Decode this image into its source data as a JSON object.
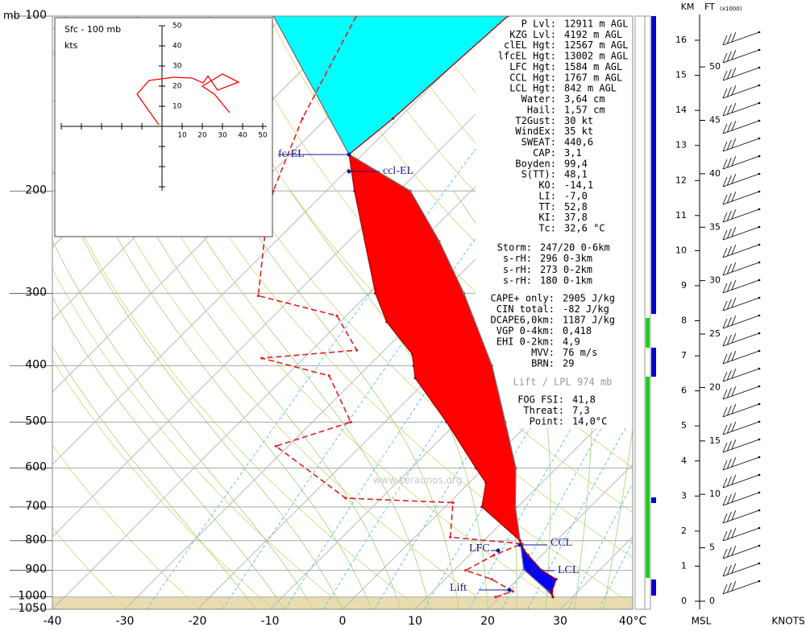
{
  "chart_data": {
    "type": "skewt",
    "y_label": "mb",
    "ylim": [
      100,
      1050
    ],
    "yticks": [
      100,
      200,
      300,
      400,
      500,
      600,
      700,
      800,
      900,
      1000,
      1050
    ],
    "log_y": true,
    "xlim": [
      -40,
      40
    ],
    "xticks": [
      -40,
      -30,
      -20,
      -10,
      0,
      10,
      20,
      30,
      {
        "value": 40,
        "label": "40°C"
      }
    ],
    "grid": true,
    "profiles": {
      "temperature": {
        "color": "#b00000",
        "dashed": false,
        "pressure": [
          1000,
          978,
          932,
          900,
          847,
          831,
          800,
          700,
          636,
          600,
          500,
          420,
          400,
          382,
          336,
          300,
          200,
          173,
          150,
          100
        ],
        "values": [
          27.3,
          26.4,
          25.3,
          22.1,
          18.1,
          16.9,
          15.0,
          5.1,
          2.3,
          -1.1,
          -11.5,
          -21.9,
          -23.8,
          -25.6,
          -33.6,
          -39.1,
          -56.1,
          -61.9,
          -60.8,
          -59.1
        ]
      },
      "dewpoint": {
        "color": "#dd2020",
        "dashed": true,
        "pressure": [
          1000,
          978,
          932,
          900,
          847,
          810,
          789,
          688,
          676,
          550,
          500,
          416,
          388,
          376,
          328,
          303,
          229,
          200,
          150,
          100
        ],
        "values": [
          19.4,
          21.0,
          16.4,
          11.6,
          13.4,
          15.7,
          4.9,
          0.5,
          -14.9,
          -31.7,
          -24.7,
          -34.1,
          -45.8,
          -33.8,
          -41.3,
          -54.9,
          -63.6,
          -67.3,
          -73.3,
          -80.0
        ]
      },
      "parcel": {
        "color": "#707070",
        "dashed": false,
        "pressure": [
          1000,
          978,
          897,
          800,
          700,
          600,
          500,
          400,
          300,
          244,
          200,
          173,
          100
        ],
        "values": [
          27.3,
          25.9,
          19.5,
          15.0,
          9.7,
          4.4,
          -3.4,
          -13.0,
          -26.9,
          -37.5,
          -48.4,
          -61.9,
          -91.4
        ]
      }
    },
    "fills": {
      "cape": "#ff0000",
      "cin": "#0000ff",
      "above_el": "#00ffff"
    },
    "level_labels": [
      "fc-EL",
      "ccl-EL",
      "CCL",
      "LFC",
      "LCL",
      "Lift"
    ],
    "watermark": "www.keraunos.org",
    "parameters": [
      [
        {
          "label": "P Lvl:",
          "value": "12911 m AGL"
        },
        {
          "label": "KZG Lvl:",
          "value": "4192 m AGL"
        },
        {
          "label": "clEL Hgt:",
          "value": "12567 m AGL"
        },
        {
          "label": "lfcEL Hgt:",
          "value": "13002 m AGL"
        },
        {
          "label": "LFC Hgt:",
          "value": "1584 m AGL"
        },
        {
          "label": "CCL Hgt:",
          "value": "1767 m AGL"
        },
        {
          "label": "LCL Hgt:",
          "value": "842 m AGL"
        },
        {
          "label": "Water:",
          "value": "3,64 cm"
        },
        {
          "label": "Hail:",
          "value": "1,57 cm"
        },
        {
          "label": "T2Gust:",
          "value": "30 kt"
        },
        {
          "label": "WindEx:",
          "value": "35 kt"
        },
        {
          "label": "SWEAT:",
          "value": "440,6"
        },
        {
          "label": "CAP:",
          "value": "3,1"
        },
        {
          "label": "Boyden:",
          "value": "99,4"
        },
        {
          "label": "S(TT):",
          "value": "48,1"
        },
        {
          "label": "KO:",
          "value": "-14,1"
        },
        {
          "label": "LI:",
          "value": "-7,0"
        },
        {
          "label": "TT:",
          "value": "52,8"
        },
        {
          "label": "KI:",
          "value": "37,8"
        },
        {
          "label": "Tc:",
          "value": "32,6 °C"
        }
      ],
      [
        {
          "label": "Storm:",
          "value": "247/20 0-6km"
        },
        {
          "label": "s-rH:",
          "value": "296  0-3km"
        },
        {
          "label": "s-rH:",
          "value": "273  0-2km"
        },
        {
          "label": "s-rH:",
          "value": "180  0-1km"
        }
      ],
      [
        {
          "label": "CAPE+ only:",
          "value": "2905 J/kg"
        },
        {
          "label": "CIN total:",
          "value": "-82 J/kg"
        },
        {
          "label": "DCAPE6,0km:",
          "value": "1187 J/kg"
        },
        {
          "label": "VGP 0-4km:",
          "value": "0,418"
        },
        {
          "label": "EHI 0-2km:",
          "value": "4,9"
        },
        {
          "label": "MVV:",
          "value": "76 m/s"
        },
        {
          "label": "BRN:",
          "value": "29"
        }
      ],
      [
        {
          "label": "FOG FSI:",
          "value": "41,8"
        },
        {
          "label": "Threat:",
          "value": "7,3"
        },
        {
          "label": "Point:",
          "value": "14,0°C"
        }
      ]
    ],
    "lift_note": "Lift / LPL 974 mb",
    "hodograph": {
      "title": "Sfc - 100 mb",
      "unit": "kts",
      "color": "#ff0000",
      "xlim": [
        -50,
        52
      ],
      "ylim": [
        -32,
        50
      ],
      "xticks": [
        10,
        20,
        30,
        40,
        50
      ],
      "yticks": [
        10,
        20,
        30,
        40,
        50
      ],
      "u": [
        -1.6,
        -12.4,
        -6.4,
        5.6,
        14.8,
        20.4,
        22.8,
        27.6,
        38,
        30,
        20,
        26,
        33.6
      ],
      "v": [
        0.8,
        16,
        22.8,
        24.4,
        24,
        21.6,
        25,
        18,
        22,
        26,
        20,
        16,
        6.8
      ]
    },
    "height_scale": {
      "km_label": "KM",
      "ft_label": "FT",
      "ft_unit": "(x1000)",
      "bottom_left": "MSL",
      "bottom_right": "KNOTS",
      "km_lim": [
        0,
        16
      ],
      "km_ticks": [
        0,
        1,
        2,
        3,
        4,
        5,
        6,
        7,
        8,
        9,
        10,
        11,
        12,
        13,
        14,
        15,
        16
      ],
      "ft_ticks": [
        0,
        5,
        10,
        15,
        20,
        25,
        30,
        35,
        40,
        45,
        50
      ]
    }
  }
}
